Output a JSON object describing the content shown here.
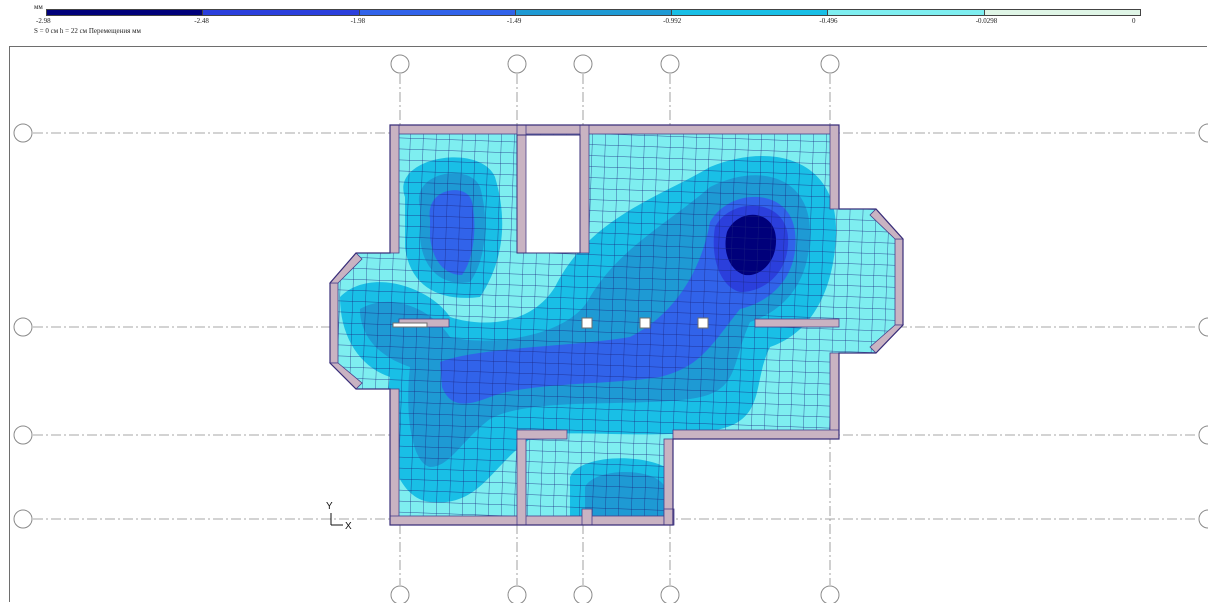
{
  "legend": {
    "unit": "мм",
    "info_text": "S =  0 см  h = 22 см  Перемещения  мм",
    "ticks": [
      "-2.98",
      "-2.48",
      "-1.98",
      "-1.49",
      "-0.992",
      "-0.496",
      "-0.0298",
      "0"
    ],
    "colors": [
      "#00007a",
      "#2b3fdc",
      "#3163ea",
      "#1e9ad4",
      "#19bfe6",
      "#7eeef0",
      "#dff5e6"
    ]
  },
  "axes": {
    "y_label": "Y",
    "x_label": "X"
  },
  "plot_colors": {
    "mesh": "#1a237e",
    "wall": "#c9b3c2",
    "outline": "#4a3f8a",
    "grid_line": "#8a8a8a"
  }
}
